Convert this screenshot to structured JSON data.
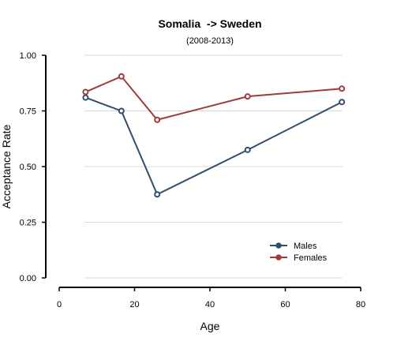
{
  "chart_data": {
    "type": "line",
    "title": "Somalia  -> Sweden",
    "subtitle": "(2008-2013)",
    "xlabel": "Age",
    "ylabel": "Acceptance Rate",
    "xlim": [
      0,
      80
    ],
    "ylim": [
      0,
      1
    ],
    "xticks": [
      0,
      20,
      40,
      60,
      80
    ],
    "xtick_labels": [
      "0",
      "20",
      "40",
      "60",
      "80"
    ],
    "yticks": [
      0,
      0.25,
      0.5,
      0.75,
      1
    ],
    "ytick_labels": [
      "0.00",
      "0.25",
      "0.50",
      "0.75",
      "1.00"
    ],
    "grid": "horizontal",
    "legend_position": "bottom-right",
    "series": [
      {
        "name": "Males",
        "color": "#2e4d6b",
        "x": [
          7,
          16.5,
          26,
          50,
          75
        ],
        "y": [
          0.81,
          0.75,
          0.375,
          0.575,
          0.79
        ]
      },
      {
        "name": "Females",
        "color": "#9e3b3b",
        "x": [
          7,
          16.5,
          26,
          50,
          75
        ],
        "y": [
          0.835,
          0.905,
          0.71,
          0.815,
          0.85
        ]
      }
    ]
  }
}
